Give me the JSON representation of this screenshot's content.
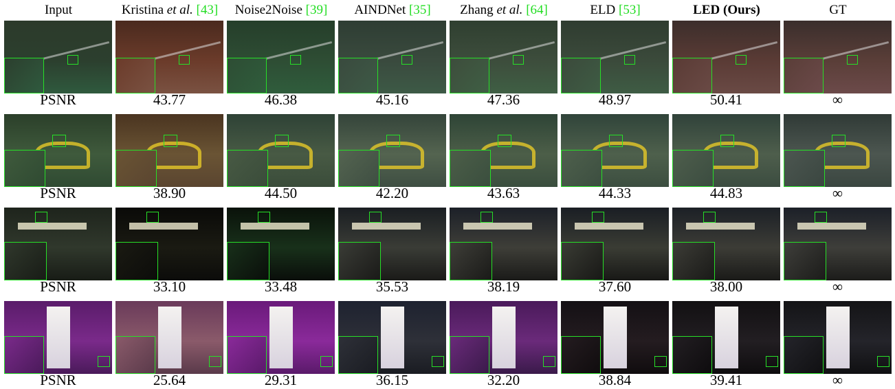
{
  "columns": [
    {
      "label": "Input",
      "ref": "",
      "italic": "",
      "tail": "",
      "bold": false
    },
    {
      "label": "Kristina ",
      "italic": "et al.",
      "tail": " ",
      "ref": "[43]",
      "bold": false
    },
    {
      "label": "Noise2Noise ",
      "italic": "",
      "tail": "",
      "ref": "[39]",
      "bold": false
    },
    {
      "label": "AINDNet ",
      "italic": "",
      "tail": "",
      "ref": "[35]",
      "bold": false
    },
    {
      "label": "Zhang ",
      "italic": "et al.",
      "tail": " ",
      "ref": "[64]",
      "bold": false
    },
    {
      "label": "ELD ",
      "italic": "",
      "tail": "",
      "ref": "[53]",
      "bold": false
    },
    {
      "label": "LED (Ours)",
      "italic": "",
      "tail": "",
      "ref": "",
      "bold": true
    },
    {
      "label": "GT",
      "italic": "",
      "tail": "",
      "ref": "",
      "bold": false
    }
  ],
  "rows": [
    {
      "scene": "bike-rack-night",
      "values": [
        "PSNR",
        "43.77",
        "46.38",
        "45.16",
        "47.36",
        "48.97",
        "50.41",
        "∞"
      ]
    },
    {
      "scene": "yellow-bicycle",
      "values": [
        "PSNR",
        "38.90",
        "44.50",
        "42.20",
        "43.63",
        "44.33",
        "44.83",
        "∞"
      ]
    },
    {
      "scene": "street-night",
      "values": [
        "PSNR",
        "33.10",
        "33.48",
        "35.53",
        "38.19",
        "37.60",
        "38.00",
        "∞"
      ]
    },
    {
      "scene": "phone-booth",
      "values": [
        "PSNR",
        "25.64",
        "29.31",
        "36.15",
        "32.20",
        "38.84",
        "39.41",
        "∞"
      ]
    }
  ],
  "colors": {
    "inset_border": "#27e027",
    "ref_link": "#22dd22"
  }
}
